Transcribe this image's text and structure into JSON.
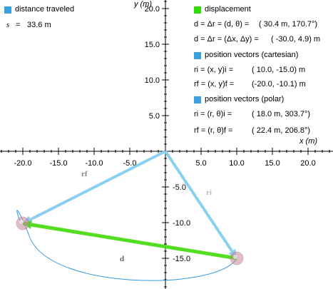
{
  "colors": {
    "background": "#ffffff",
    "axis": "#000000",
    "distance_swatch": "#3aa0e0",
    "displacement": "#55dd22",
    "displacement_swatch": "#33dd00",
    "position": "#8ccfee",
    "position_swatch": "#3aa0e0",
    "path": "#3399dd",
    "ball": "#cc8899"
  },
  "axes": {
    "x_label": "x (m)",
    "y_label": "y (m)",
    "x_ticks": [
      "-20.0",
      "-15.0",
      "-10.0",
      "-5.0",
      "5.0",
      "10.0",
      "15.0",
      "20.0"
    ],
    "y_ticks_pos": [
      "20.0",
      "15.0",
      "10.0",
      "5.0"
    ],
    "y_ticks_neg": [
      "-5.0",
      "-10.0",
      "-15.0"
    ],
    "x_range": [
      -23.0,
      23.5
    ],
    "y_range": [
      -18.5,
      21.0
    ]
  },
  "distance": {
    "legend": "distance traveled",
    "symbol": "s",
    "value": "33.6 m"
  },
  "displacement": {
    "legend": "displacement",
    "polar_lhs": "d = Δr = (d, θ) =",
    "polar_value": "( 30.4 m,  170.7°)",
    "cart_lhs": "d = Δr = (Δx, Δy) =",
    "cart_value": "( -30.0,  4.9) m"
  },
  "position_cartesian": {
    "legend": "position vectors (cartesian)",
    "ri_lhs": "ri = (x, y)i =",
    "ri_value": "( 10.0, -15.0) m",
    "rf_lhs": "rf = (x, y)f =",
    "rf_value": "(-20.0, -10.1) m"
  },
  "position_polar": {
    "legend": "position vectors (polar)",
    "ri_lhs": "ri = (r, θ)i =",
    "ri_value": "( 18.0 m,  303.7°)",
    "rf_lhs": "rf = (r, θ)f =",
    "rf_value": "( 22.4 m,  206.8°)"
  },
  "vector_labels": {
    "rf": "rf",
    "ri": "ri",
    "d": "d"
  },
  "scene": {
    "origin": [
      0,
      0
    ],
    "initial": [
      10.0,
      -15.0
    ],
    "final": [
      -20.0,
      -10.1
    ]
  }
}
